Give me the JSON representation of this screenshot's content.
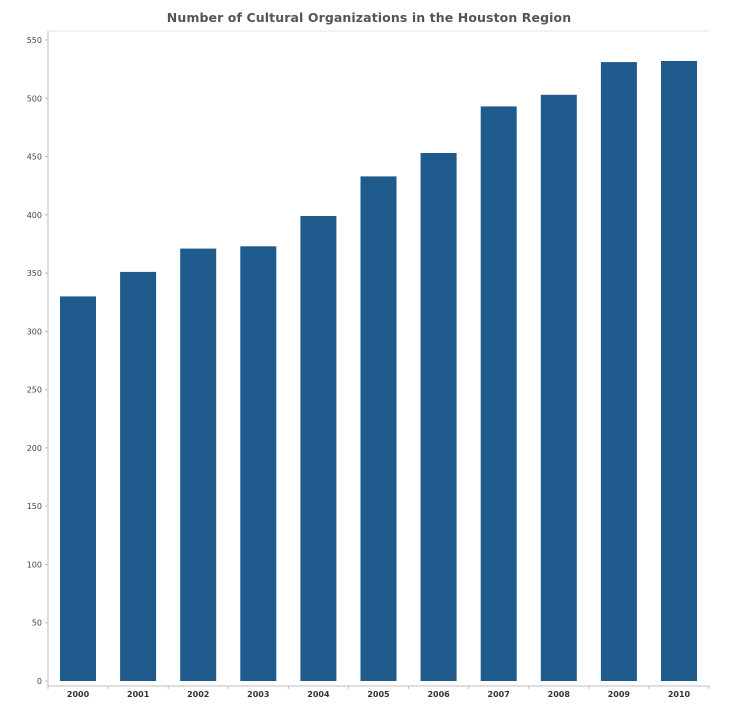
{
  "chart_data": {
    "type": "bar",
    "title": "Number of Cultural Organizations in the Houston Region",
    "xlabel": "",
    "ylabel": "",
    "categories": [
      "2000",
      "2001",
      "2002",
      "2003",
      "2004",
      "2005",
      "2006",
      "2007",
      "2008",
      "2009",
      "2010"
    ],
    "values": [
      330,
      351,
      371,
      373,
      399,
      433,
      453,
      493,
      503,
      531,
      532
    ],
    "ylim": [
      0,
      550
    ],
    "yticks": [
      "0",
      "50",
      "100",
      "150",
      "200",
      "250",
      "300",
      "350",
      "400",
      "450",
      "500",
      "550"
    ],
    "grid": false,
    "legend": "none",
    "bar_color": "#1f5a8c"
  }
}
